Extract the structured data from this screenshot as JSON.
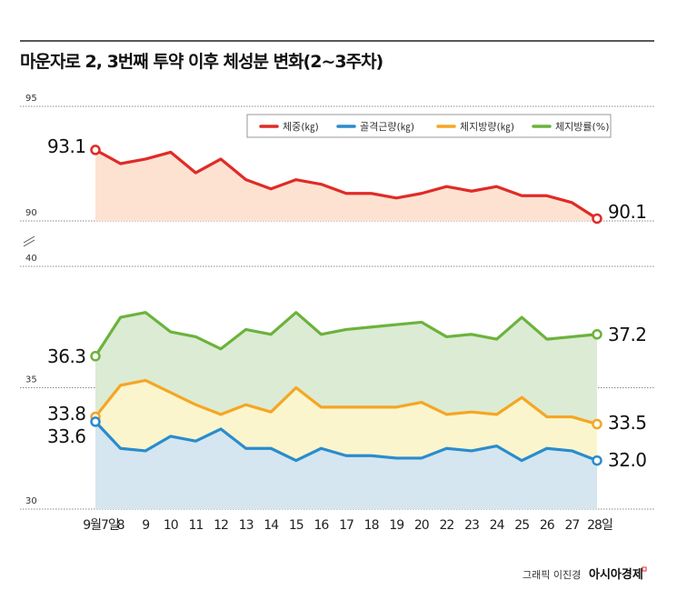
{
  "chart_data": {
    "type": "line",
    "title": "마운자로 2, 3번째 투약 이후 체성분 변화(2~3주차)",
    "categories": [
      "9월7일",
      "8",
      "9",
      "10",
      "11",
      "12",
      "13",
      "14",
      "15",
      "16",
      "17",
      "18",
      "19",
      "20",
      "22",
      "23",
      "24",
      "25",
      "26",
      "27",
      "28일"
    ],
    "panels": [
      {
        "yticks": [
          90,
          95
        ],
        "ylim": [
          90,
          95
        ],
        "series": [
          "체중(㎏)"
        ]
      },
      {
        "yticks": [
          30,
          35,
          40
        ],
        "ylim": [
          30,
          40
        ],
        "series": [
          "골격근량(㎏)",
          "체지방량(㎏)",
          "체지방률(%)"
        ]
      }
    ],
    "axis_break": true,
    "grid": true,
    "legend_position": "top-right",
    "series": [
      {
        "name": "체중(㎏)",
        "color": "#e02b27",
        "fill": "#fde2d2",
        "values": [
          93.1,
          92.5,
          92.7,
          93.0,
          92.1,
          92.7,
          91.8,
          91.4,
          91.8,
          91.6,
          91.2,
          91.2,
          91.0,
          91.2,
          91.5,
          91.3,
          91.5,
          91.1,
          91.1,
          90.8,
          90.1
        ],
        "start_label": "93.1",
        "end_label": "90.1"
      },
      {
        "name": "골격근량(㎏)",
        "color": "#2a8ccd",
        "fill": "#d5e6f0",
        "values": [
          33.6,
          32.5,
          32.4,
          33.0,
          32.8,
          33.3,
          32.5,
          32.5,
          32.0,
          32.5,
          32.2,
          32.2,
          32.1,
          32.1,
          32.5,
          32.4,
          32.6,
          32.0,
          32.5,
          32.4,
          32.0
        ],
        "start_label": "33.6",
        "end_label": "32.0"
      },
      {
        "name": "체지방량(㎏)",
        "color": "#f5a623",
        "fill": "#fbf5cd",
        "values": [
          33.8,
          35.1,
          35.3,
          34.8,
          34.3,
          33.9,
          34.3,
          34.0,
          35.0,
          34.2,
          34.2,
          34.2,
          34.2,
          34.4,
          33.9,
          34.0,
          33.9,
          34.6,
          33.8,
          33.8,
          33.5
        ],
        "start_label": "33.8",
        "end_label": "33.5"
      },
      {
        "name": "체지방률(%)",
        "color": "#6bb33c",
        "fill": "#dcebd4",
        "values": [
          36.3,
          37.9,
          38.1,
          37.3,
          37.1,
          36.6,
          37.4,
          37.2,
          38.1,
          37.2,
          37.4,
          37.5,
          37.6,
          37.7,
          37.1,
          37.2,
          37.0,
          37.9,
          37.0,
          37.1,
          37.2
        ],
        "start_label": "36.3",
        "end_label": "37.2"
      }
    ]
  },
  "credit": "그래픽 이진경",
  "logo": "아시아경제"
}
